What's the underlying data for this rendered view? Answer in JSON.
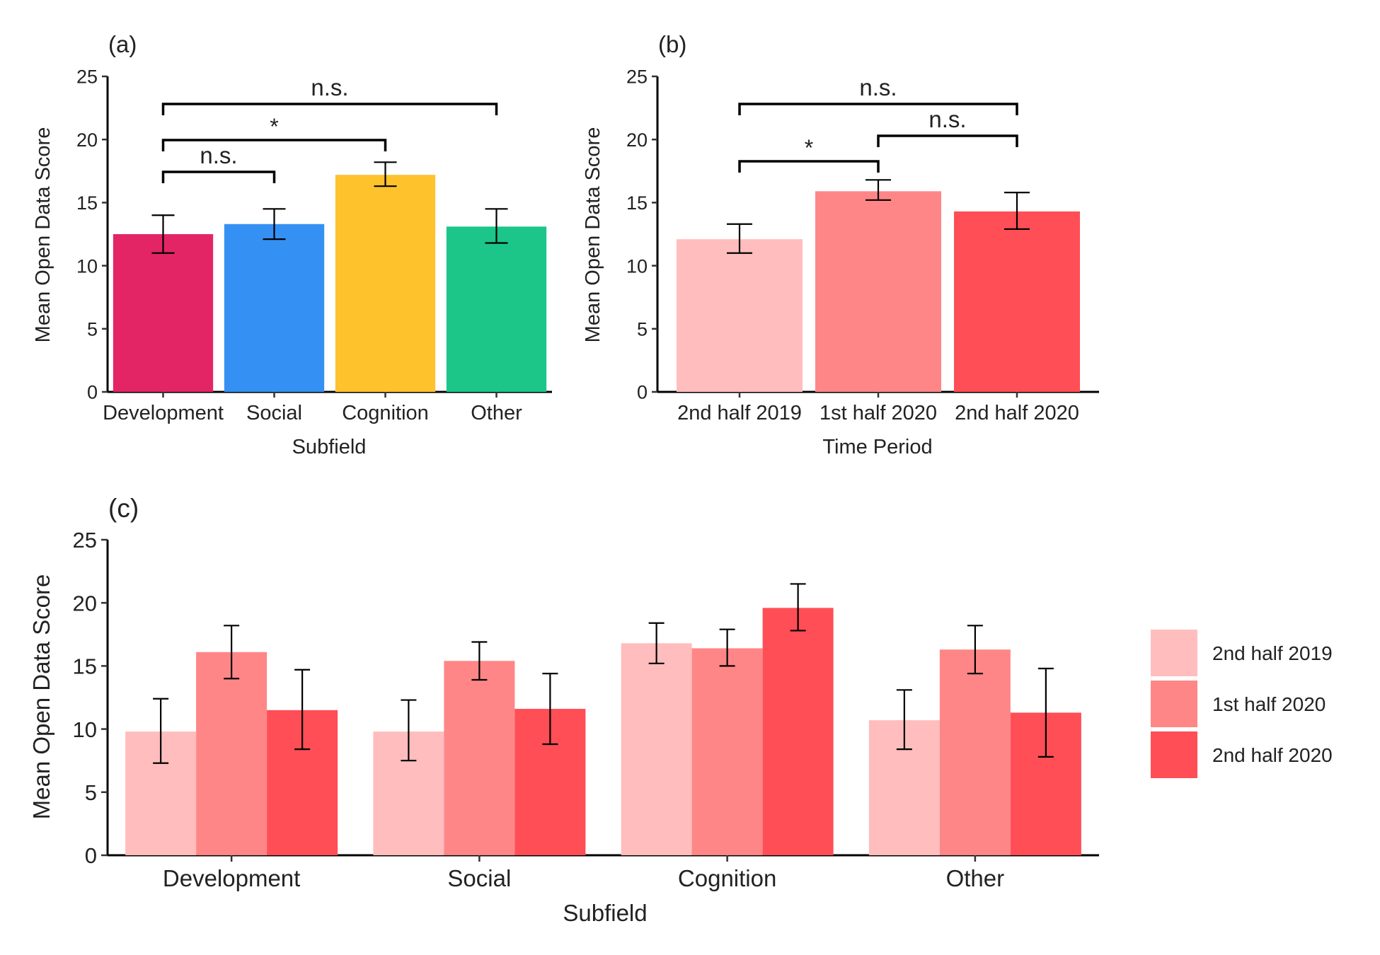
{
  "chart_data": [
    {
      "panel": "(a)",
      "type": "bar",
      "ylabel": "Mean Open Data Score",
      "xlabel": "Subfield",
      "ylim": [
        0,
        25
      ],
      "yticks": [
        0,
        5,
        10,
        15,
        20,
        25
      ],
      "categories": [
        "Development",
        "Social",
        "Cognition",
        "Other"
      ],
      "values": [
        12.5,
        13.3,
        17.2,
        13.1
      ],
      "err_low": [
        11.0,
        12.1,
        16.3,
        11.8
      ],
      "err_high": [
        14.0,
        14.5,
        18.2,
        14.5
      ],
      "colors": [
        "#E32566",
        "#3590F3",
        "#FEC22D",
        "#1BC688"
      ],
      "comparisons": [
        {
          "from": 0,
          "to": 1,
          "label": "n.s."
        },
        {
          "from": 0,
          "to": 2,
          "label": "*"
        },
        {
          "from": 0,
          "to": 3,
          "label": "n.s."
        }
      ]
    },
    {
      "panel": "(b)",
      "type": "bar",
      "ylabel": "Mean Open Data Score",
      "xlabel": "Time Period",
      "ylim": [
        0,
        25
      ],
      "yticks": [
        0,
        5,
        10,
        15,
        20,
        25
      ],
      "categories": [
        "2nd half 2019",
        "1st half 2020",
        "2nd half 2020"
      ],
      "values": [
        12.1,
        15.9,
        14.3
      ],
      "err_low": [
        11.0,
        15.2,
        12.9
      ],
      "err_high": [
        13.3,
        16.8,
        15.8
      ],
      "colors": [
        "#FFBDBE",
        "#FF8687",
        "#FF4E55"
      ],
      "comparisons": [
        {
          "from": 0,
          "to": 1,
          "label": "*"
        },
        {
          "from": 1,
          "to": 2,
          "label": "n.s."
        },
        {
          "from": 0,
          "to": 2,
          "label": "n.s."
        }
      ]
    },
    {
      "panel": "(c)",
      "type": "bar",
      "ylabel": "Mean Open Data Score",
      "xlabel": "Subfield",
      "ylim": [
        0,
        25
      ],
      "yticks": [
        0,
        5,
        10,
        15,
        20,
        25
      ],
      "categories": [
        "Development",
        "Social",
        "Cognition",
        "Other"
      ],
      "series": [
        {
          "name": "2nd half 2019",
          "color": "#FFBDBE",
          "values": [
            9.8,
            9.8,
            16.8,
            10.7
          ],
          "err_low": [
            7.3,
            7.5,
            15.2,
            8.4
          ],
          "err_high": [
            12.4,
            12.3,
            18.4,
            13.1
          ]
        },
        {
          "name": "1st half 2020",
          "color": "#FF8687",
          "values": [
            16.1,
            15.4,
            16.4,
            16.3
          ],
          "err_low": [
            14.0,
            13.9,
            15.0,
            14.4
          ],
          "err_high": [
            18.2,
            16.9,
            17.9,
            18.2
          ]
        },
        {
          "name": "2nd half 2020",
          "color": "#FF4E55",
          "values": [
            11.5,
            11.6,
            19.6,
            11.3
          ],
          "err_low": [
            8.4,
            8.8,
            17.8,
            7.8
          ],
          "err_high": [
            14.7,
            14.4,
            21.5,
            14.8
          ]
        }
      ]
    }
  ]
}
